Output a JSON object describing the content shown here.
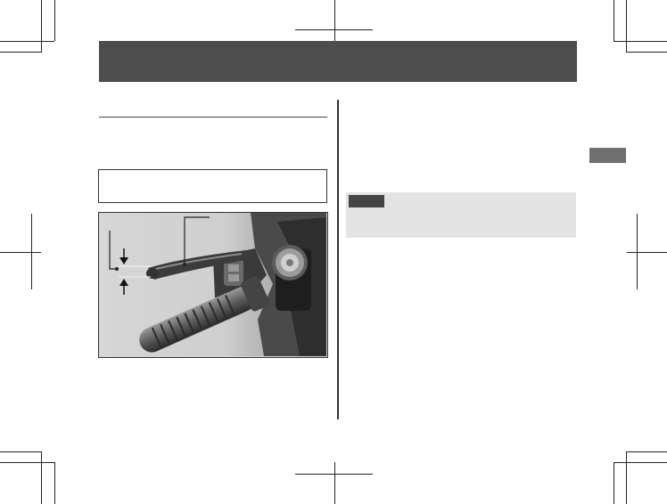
{
  "header": {
    "title": ""
  },
  "section": {
    "heading": ""
  },
  "note_box": {
    "text": ""
  },
  "tip": {
    "tag_label": "",
    "text": ""
  },
  "side_tab": {
    "label": ""
  },
  "figure": {
    "description_icon": "brake-lever-adjustment-photo"
  },
  "colors": {
    "header_band": "#4d4d4d",
    "tip_background": "#e3e3e3",
    "tip_tag": "#444444",
    "side_tab": "#6f6f6f"
  }
}
